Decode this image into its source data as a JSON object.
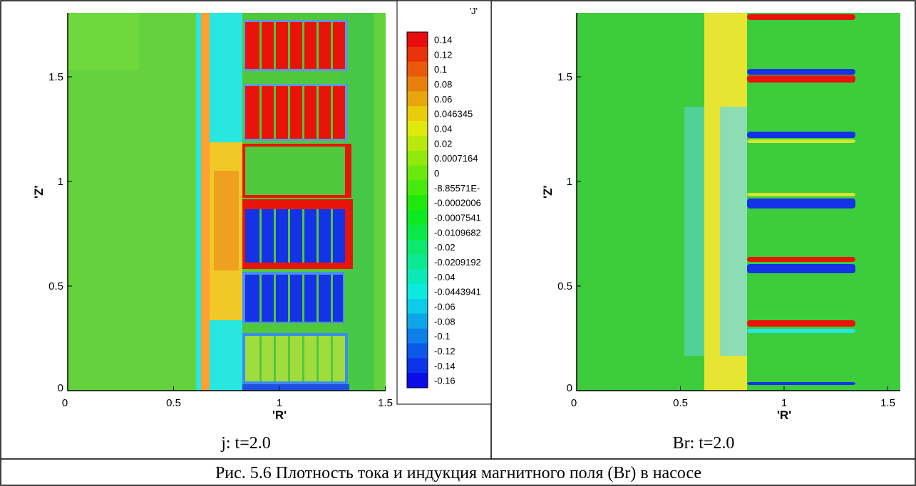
{
  "figures": [
    {
      "x_label": "'R'",
      "y_label": "'Z'",
      "xticks": [
        "0",
        "0.5",
        "1",
        "1.5"
      ],
      "yticks": [
        "0",
        "0.5",
        "1",
        "1.5"
      ],
      "legend": {
        "title": "'J'",
        "levels": [
          "0.14",
          "0.12",
          "0.1",
          "0.08",
          "0.06",
          "0.046345",
          "0.04",
          "0.02",
          "0.0007164",
          "0",
          "-8.85571E-",
          "-0.0002006",
          "-0.0007541",
          "-0.0109682",
          "-0.02",
          "-0.0209192",
          "-0.04",
          "-0.0443941",
          "-0.06",
          "-0.08",
          "-0.1",
          "-0.12",
          "-0.14",
          "-0.16"
        ]
      },
      "caption": "j: t=2.0"
    },
    {
      "x_label": "'R'",
      "y_label": "'Z'",
      "xticks": [
        "0",
        "0.5",
        "1",
        "1.5"
      ],
      "yticks": [
        "0",
        "0.5",
        "1",
        "1.5"
      ],
      "caption": "Br: t=2.0"
    }
  ],
  "caption": "Рис. 5.6 Плотность тока и индукция магнитного поля (Br) в насосе"
}
